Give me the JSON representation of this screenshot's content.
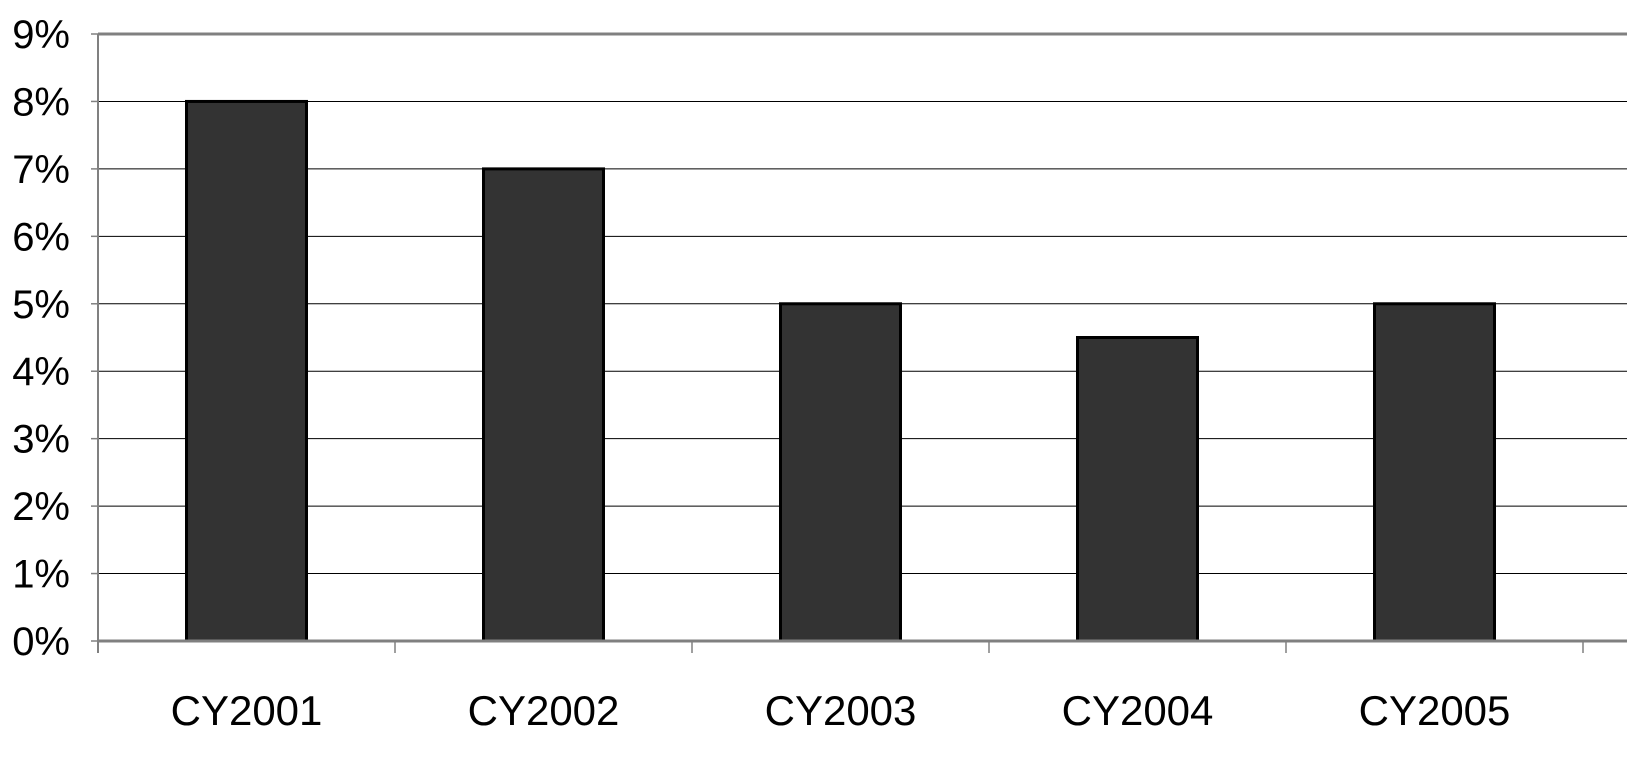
{
  "chart_data": {
    "type": "bar",
    "title": "",
    "xlabel": "",
    "ylabel": "",
    "categories": [
      "CY2001",
      "CY2002",
      "CY2003",
      "CY2004",
      "CY2005"
    ],
    "values": [
      8.0,
      7.0,
      5.0,
      4.5,
      5.0
    ],
    "value_unit": "%",
    "ylim": [
      0,
      9
    ],
    "yticks": [
      0,
      1,
      2,
      3,
      4,
      5,
      6,
      7,
      8,
      9
    ],
    "ytick_labels": [
      "0%",
      "1%",
      "2%",
      "3%",
      "4%",
      "5%",
      "6%",
      "7%",
      "8%",
      "9%"
    ],
    "grid": true,
    "legend": "none",
    "colors": {
      "bar_fill": "#333333",
      "bar_stroke": "#000000",
      "gridline": "#000000",
      "axis": "#808080"
    }
  }
}
